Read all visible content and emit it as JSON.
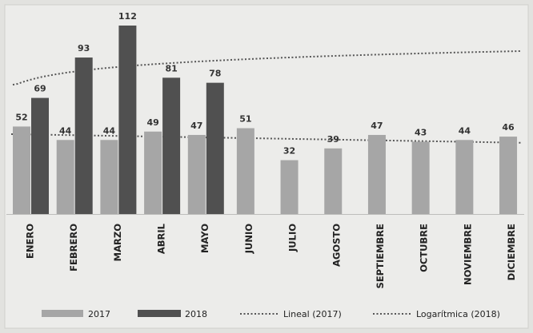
{
  "chart_data": {
    "type": "bar",
    "categories": [
      "ENERO",
      "FEBRERO",
      "MARZO",
      "ABRIL",
      "MAYO",
      "JUNIO",
      "JULIO",
      "AGOSTO",
      "SEPTIEMBRE",
      "OCTUBRE",
      "NOVIEMBRE",
      "DICIEMBRE"
    ],
    "series": [
      {
        "name": "2017",
        "color": "#a6a6a6",
        "values": [
          52,
          44,
          44,
          49,
          47,
          51,
          32,
          39,
          47,
          43,
          44,
          46
        ]
      },
      {
        "name": "2018",
        "color": "#505050",
        "values": [
          69,
          93,
          112,
          81,
          78,
          null,
          null,
          null,
          null,
          null,
          null,
          null
        ]
      }
    ],
    "trendlines": [
      {
        "name": "Lineal (2017)",
        "type": "linear",
        "series": "2017"
      },
      {
        "name": "Logarítmica (2018)",
        "type": "logarithmic",
        "series": "2018"
      }
    ],
    "ylim": [
      0,
      112
    ],
    "grid": false,
    "data_labels": true,
    "legend_position": "bottom"
  }
}
